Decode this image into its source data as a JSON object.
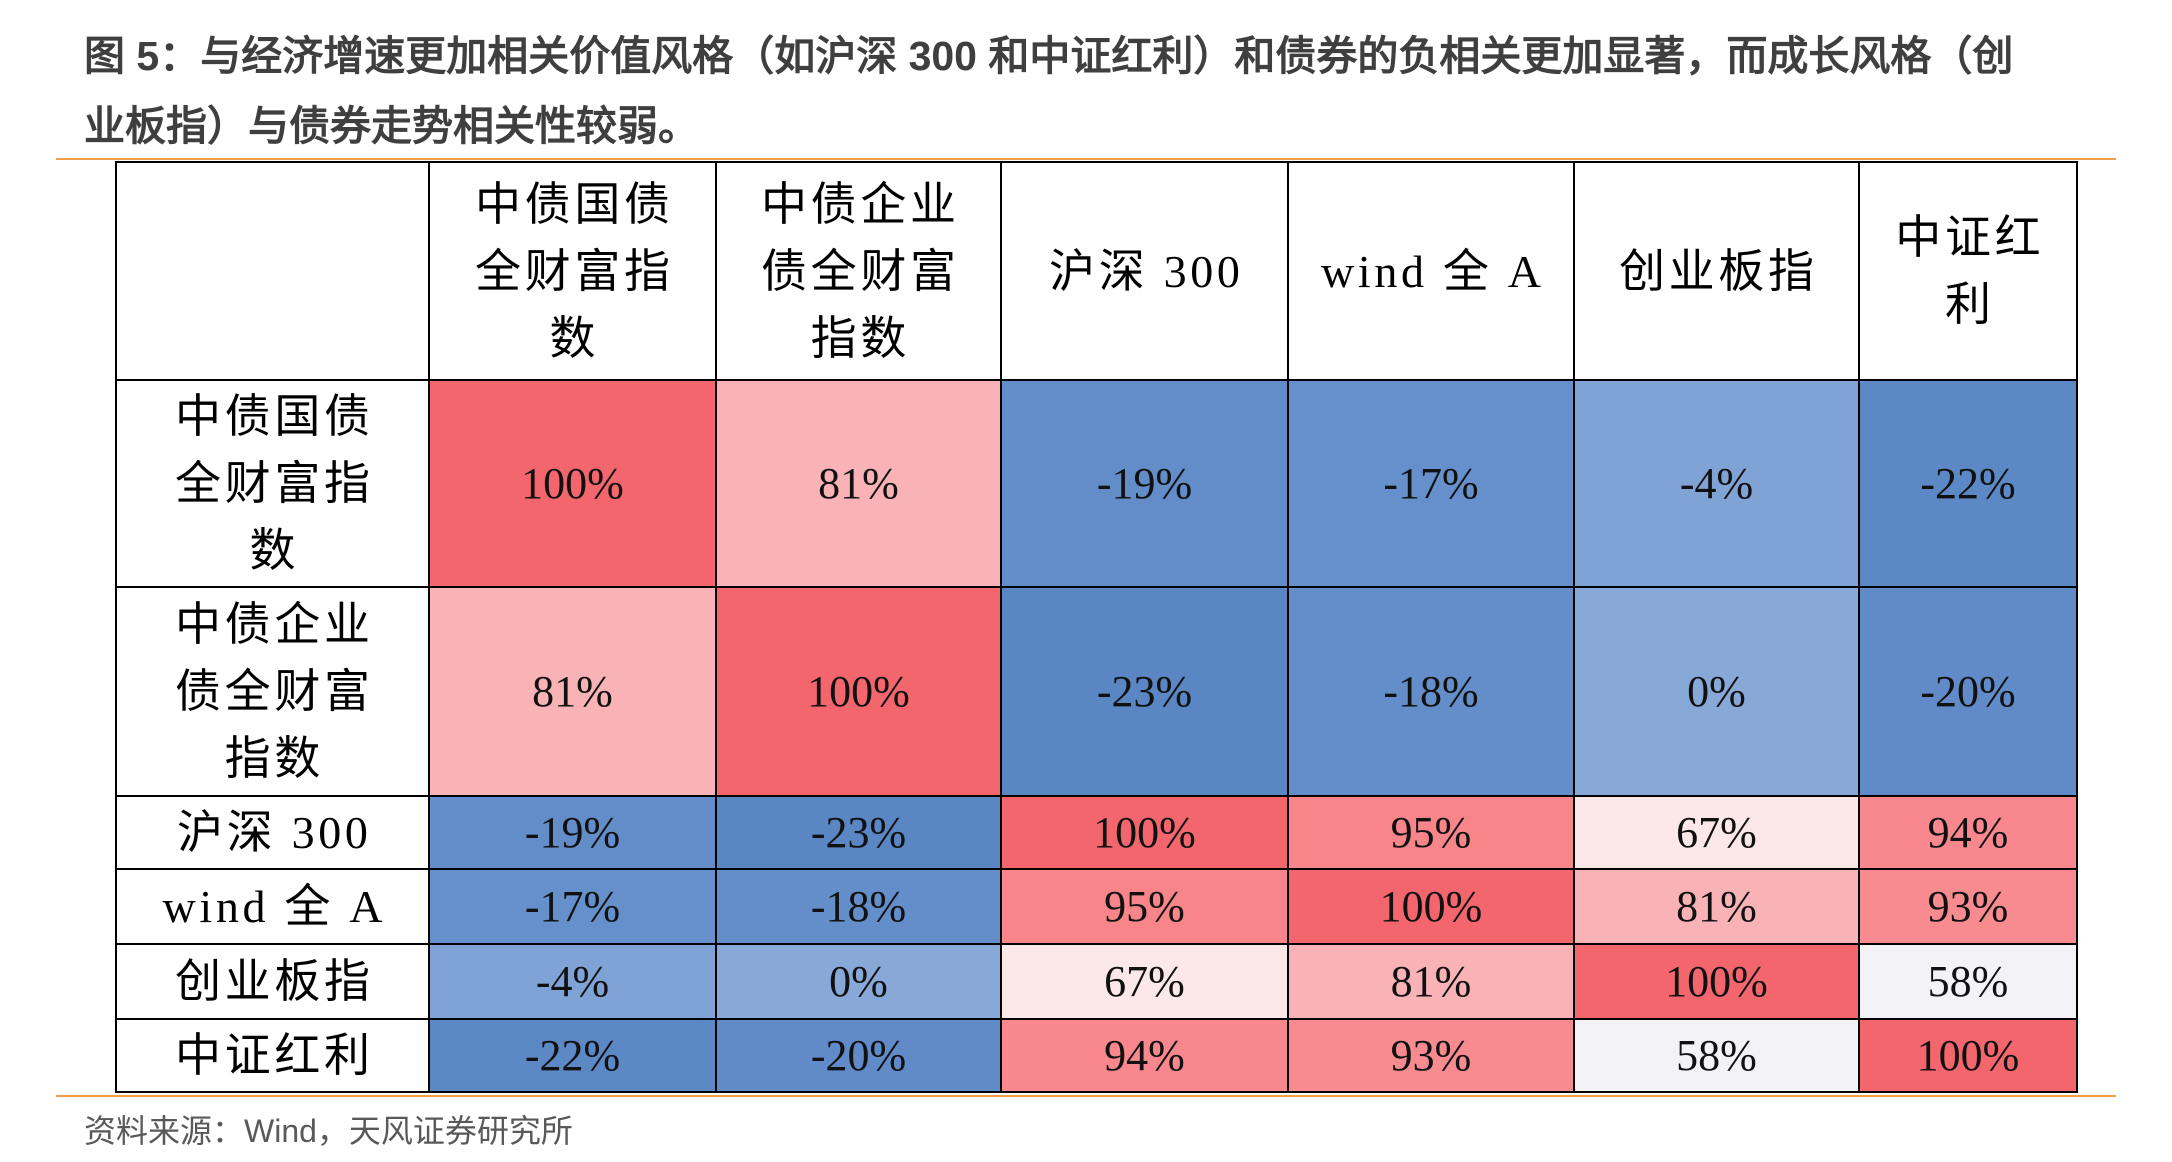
{
  "colors": {
    "rule": "#F0A04B",
    "title": "#3F3F3F",
    "source": "#595959",
    "grid_line": "#000000"
  },
  "chart_data": {
    "type": "heatmap",
    "title": [
      "图 5：与经济增速更加相关价值风格（如沪深 300 和中证红利）和债券的负相关更加显著，而成长风格（创",
      "业板指）与债券走势相关性较弱。"
    ],
    "columns": [
      "中债国债全财富指数",
      "中债企业债全财富指数",
      "沪深 300",
      "wind 全 A",
      "创业板指",
      "中证红利"
    ],
    "rows": [
      "中债国债全财富指数",
      "中债企业债全财富指数",
      "沪深 300",
      "wind 全 A",
      "创业板指",
      "中证红利"
    ],
    "unit": "%",
    "matrix": [
      [
        100,
        81,
        -19,
        -17,
        -4,
        -22
      ],
      [
        81,
        100,
        -23,
        -18,
        0,
        -20
      ],
      [
        -19,
        -23,
        100,
        95,
        67,
        94
      ],
      [
        -17,
        -18,
        95,
        100,
        81,
        93
      ],
      [
        -4,
        0,
        67,
        81,
        100,
        58
      ],
      [
        -22,
        -20,
        94,
        93,
        58,
        100
      ]
    ],
    "color_scale": [
      {
        "value": -23,
        "color": "#5A86C4"
      },
      {
        "value": -17,
        "color": "#6690CB"
      },
      {
        "value": -4,
        "color": "#80A3D6"
      },
      {
        "value": 0,
        "color": "#88A9D8"
      },
      {
        "value": 58,
        "color": "#F3F2F7"
      },
      {
        "value": 67,
        "color": "#FCE8E9"
      },
      {
        "value": 81,
        "color": "#F9B2B6"
      },
      {
        "value": 95,
        "color": "#F8858A"
      },
      {
        "value": 100,
        "color": "#F3666E"
      }
    ]
  },
  "figure": {
    "source": "资料来源：Wind，天风证券研究所"
  }
}
